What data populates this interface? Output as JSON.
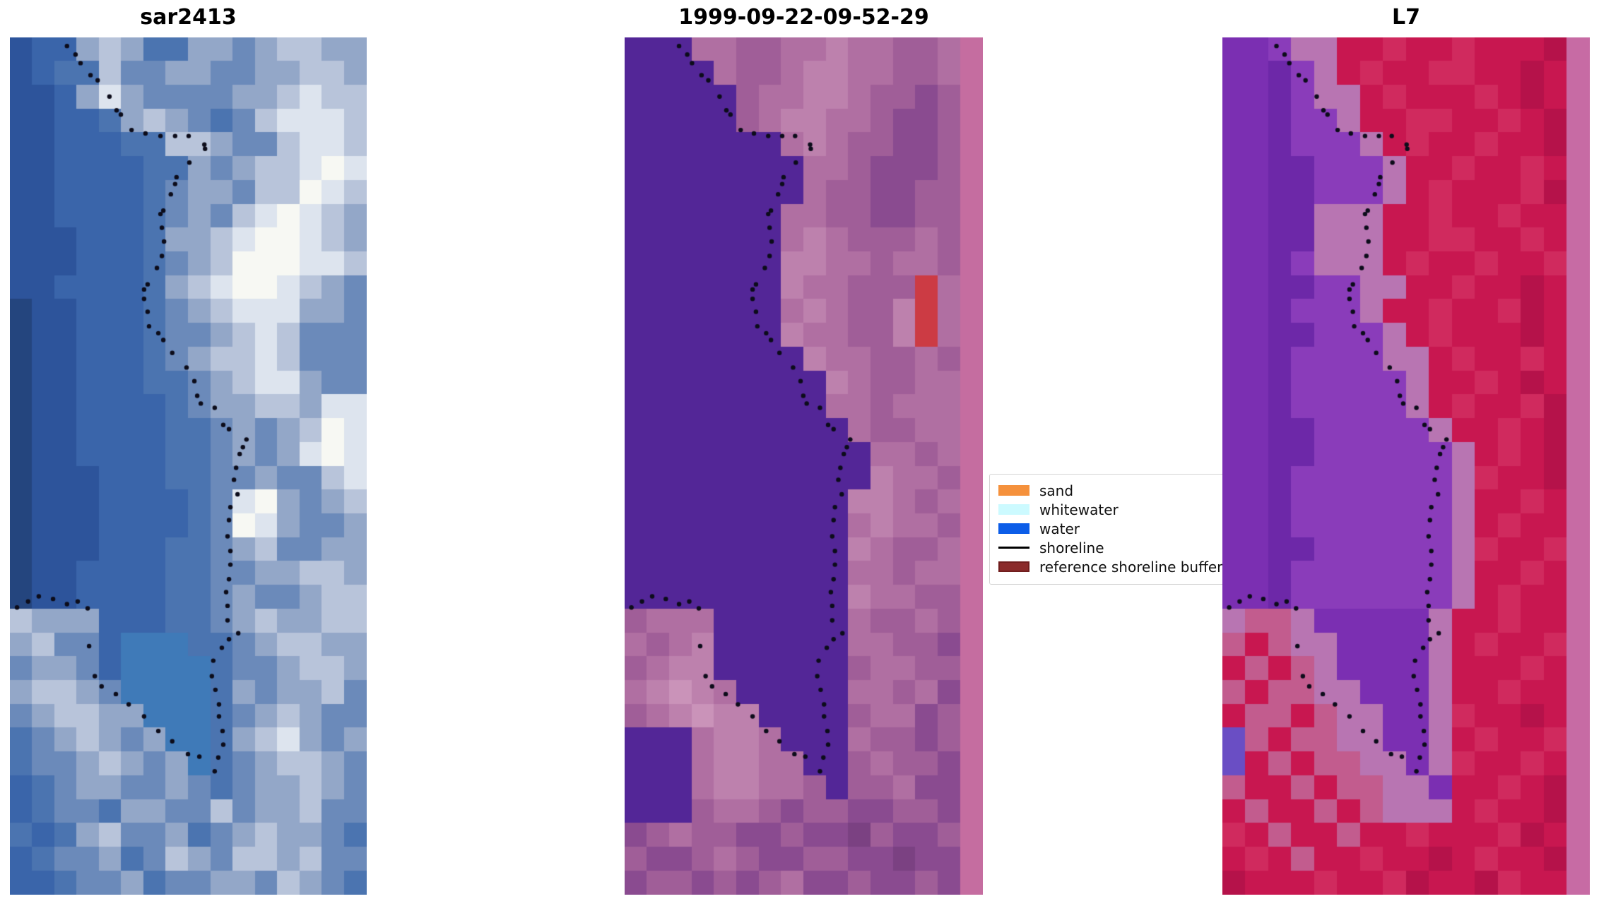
{
  "figure": {
    "background": "#ffffff"
  },
  "panels": [
    {
      "id": "sar",
      "title": "sar2413",
      "cols": 16,
      "shoreline_sx": 1.0,
      "palette": [
        "#24457e",
        "#2d549b",
        "#3a65aa",
        "#4b74b0",
        "#6b8aba",
        "#93a7c8",
        "#b8c4da",
        "#dde4ee",
        "#f7f8f3",
        "#3f7ab8"
      ],
      "rows": [
        "1225653355456655",
        "1233644554455665",
        "1125754444556766",
        "1122356543467776",
        "1122233665446776",
        "1122223354566787",
        "1122223455466876",
        "1122223454678765",
        "1112223556788765",
        "1112223456888776",
        "1122223567887654",
        "0112223456777554",
        "0112223445676444",
        "0112223456676444",
        "0112223345677544",
        "0112222345566577",
        "0112222334545687",
        "0112222334545787",
        "0111222334454467",
        "0111222234785456",
        "0111222234875445",
        "0111222334564455",
        "0112222334455665",
        "0112222334544566",
        "6555222334565566",
        "5644299933456655",
        "4554299993445665",
        "5665499993545564",
        "4566559993456544",
        "3456545993567545",
        "3445654593456654",
        "2345544543455654",
        "2344355446455644",
        "3235644534565543",
        "2344534654665644",
        "2234453445546543"
      ]
    },
    {
      "id": "classified",
      "title": "1999-09-22-09-52-29",
      "cols": 16,
      "shoreline_sx": 0.95,
      "palette": [
        "#532697",
        "#6b3a9e",
        "#8a4b90",
        "#a05e98",
        "#b06fa2",
        "#bd81ad",
        "#ca93b9",
        "#7b4182",
        "#cc3b44",
        "#c56da0"
      ],
      "rows": [
        "0004433445443349",
        "0000433455443349",
        "0000034455433239",
        "0000034554432239",
        "0000000454332239",
        "0000000044322239",
        "0000000043322339",
        "0000000443322339",
        "0000000454333439",
        "0000000554434439",
        "0000000544333849",
        "0000000454335849",
        "0000000544335849",
        "0000000054433439",
        "0000000005433449",
        "0000000004434449",
        "0000000000433449",
        "0000000000044349",
        "0000000000054439",
        "0000000000554349",
        "0000000000454439",
        "0000000000543349",
        "0000000000443449",
        "0000000000544339",
        "3444000000433439",
        "4345000000443329",
        "3455000000344339",
        "4565400000443429",
        "3456550000344239",
        "0004554000433239",
        "0004554400343329",
        "0004554430334229",
        "0003443233223329",
        "2343322322732239",
        "3223432233227229",
        "2332323422322329"
      ]
    },
    {
      "id": "l7",
      "title": "L7",
      "cols": 16,
      "shoreline_sx": 0.92,
      "palette": [
        "#7b2fb2",
        "#6d28a8",
        "#8a3cba",
        "#b875b2",
        "#c81750",
        "#d02a5e",
        "#b5124a",
        "#c76ba4",
        "#c25c8e",
        "#6a4ec4"
      ],
      "rows": [
        "0023344544544467",
        "0012345445544647",
        "0012334544454647",
        "0012234455445467",
        "0012223454454467",
        "0011222344544547",
        "0011222345444567",
        "0011333445445447",
        "0011333445544547",
        "0012333454454457",
        "0011223344544647",
        "0012223445445647",
        "0011222345444647",
        "0012222334544547",
        "0012222234454647",
        "0012222234544567",
        "0011222223445467",
        "0011222222345467",
        "0012222222354467",
        "0012222222344547",
        "0012222222345447",
        "0011222222354457",
        "0012222222344547",
        "0012222222345447",
        "3883000003445447",
        "8483300003454457",
        "4848300003444547",
        "8488330003445447",
        "4884833003544647",
        "9848833003454457",
        "9484883303544547",
        "8448488330445467",
        "4844848333454467",
        "5484484454445647",
        "4548445446454467",
        "6444544564465447"
      ]
    }
  ],
  "shoreline": {
    "color": "#0c0c1a",
    "dot_radius": 3.2,
    "points": [
      [
        0.16,
        0.01
      ],
      [
        0.184,
        0.02
      ],
      [
        0.198,
        0.03
      ],
      [
        0.226,
        0.044
      ],
      [
        0.246,
        0.05
      ],
      [
        0.279,
        0.069
      ],
      [
        0.299,
        0.085
      ],
      [
        0.311,
        0.09
      ],
      [
        0.341,
        0.108
      ],
      [
        0.38,
        0.112
      ],
      [
        0.422,
        0.115
      ],
      [
        0.463,
        0.115
      ],
      [
        0.501,
        0.115
      ],
      [
        0.545,
        0.125
      ],
      [
        0.547,
        0.13
      ],
      [
        0.503,
        0.146
      ],
      [
        0.467,
        0.163
      ],
      [
        0.463,
        0.171
      ],
      [
        0.451,
        0.183
      ],
      [
        0.43,
        0.202
      ],
      [
        0.422,
        0.206
      ],
      [
        0.426,
        0.222
      ],
      [
        0.432,
        0.238
      ],
      [
        0.426,
        0.255
      ],
      [
        0.412,
        0.269
      ],
      [
        0.386,
        0.288
      ],
      [
        0.376,
        0.294
      ],
      [
        0.376,
        0.305
      ],
      [
        0.386,
        0.32
      ],
      [
        0.39,
        0.337
      ],
      [
        0.416,
        0.345
      ],
      [
        0.43,
        0.353
      ],
      [
        0.455,
        0.368
      ],
      [
        0.495,
        0.385
      ],
      [
        0.517,
        0.401
      ],
      [
        0.525,
        0.418
      ],
      [
        0.535,
        0.427
      ],
      [
        0.574,
        0.432
      ],
      [
        0.598,
        0.452
      ],
      [
        0.614,
        0.457
      ],
      [
        0.663,
        0.469
      ],
      [
        0.653,
        0.478
      ],
      [
        0.644,
        0.486
      ],
      [
        0.634,
        0.502
      ],
      [
        0.628,
        0.516
      ],
      [
        0.638,
        0.533
      ],
      [
        0.618,
        0.548
      ],
      [
        0.614,
        0.563
      ],
      [
        0.61,
        0.582
      ],
      [
        0.618,
        0.599
      ],
      [
        0.618,
        0.615
      ],
      [
        0.614,
        0.632
      ],
      [
        0.606,
        0.647
      ],
      [
        0.61,
        0.663
      ],
      [
        0.61,
        0.68
      ],
      [
        0.64,
        0.695
      ],
      [
        0.614,
        0.702
      ],
      [
        0.594,
        0.712
      ],
      [
        0.57,
        0.727
      ],
      [
        0.566,
        0.745
      ],
      [
        0.576,
        0.761
      ],
      [
        0.586,
        0.778
      ],
      [
        0.586,
        0.792
      ],
      [
        0.596,
        0.809
      ],
      [
        0.598,
        0.825
      ],
      [
        0.584,
        0.84
      ],
      [
        0.574,
        0.856
      ],
      [
        0.531,
        0.839
      ],
      [
        0.499,
        0.836
      ],
      [
        0.455,
        0.821
      ],
      [
        0.416,
        0.809
      ],
      [
        0.376,
        0.792
      ],
      [
        0.333,
        0.778
      ],
      [
        0.297,
        0.766
      ],
      [
        0.257,
        0.757
      ],
      [
        0.238,
        0.745
      ],
      [
        0.222,
        0.71
      ],
      [
        0.218,
        0.666
      ],
      [
        0.19,
        0.658
      ],
      [
        0.16,
        0.661
      ],
      [
        0.121,
        0.655
      ],
      [
        0.081,
        0.652
      ],
      [
        0.051,
        0.658
      ],
      [
        0.02,
        0.665
      ]
    ]
  },
  "legend": {
    "items": [
      {
        "label": "sand",
        "color": "#f5913c",
        "kind": "patch"
      },
      {
        "label": "whitewater",
        "color": "#ccfaff",
        "kind": "patch"
      },
      {
        "label": "water",
        "color": "#0c5de8",
        "kind": "patch"
      },
      {
        "label": "shoreline",
        "color": "#000000",
        "kind": "line"
      },
      {
        "label": "reference shoreline buffer",
        "color": "#8b2a2a",
        "kind": "patch",
        "border": "#701d1d"
      }
    ]
  }
}
